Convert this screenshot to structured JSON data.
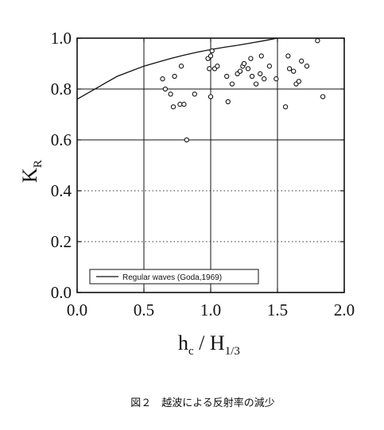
{
  "chart_data": {
    "type": "scatter",
    "xlabel": {
      "main": "h",
      "main_sub": "c",
      "sep": " / ",
      "denom": "H",
      "denom_sub": "1/3"
    },
    "ylabel": {
      "main": "K",
      "sub": "R"
    },
    "xlim": [
      0.0,
      2.0
    ],
    "ylim": [
      0.0,
      1.0
    ],
    "x_ticks": [
      "0.0",
      "0.5",
      "1.0",
      "1.5",
      "2.0"
    ],
    "y_ticks": [
      "0.0",
      "0.2",
      "0.4",
      "0.6",
      "0.8",
      "1.0"
    ],
    "grid": "solid at 0.5, 1.0, 1.5 (x) and 0.6, 0.8 (y); dotted at 0.2, 0.4 (y)",
    "legend": {
      "placement": "bottom-left",
      "entry": "Regular waves (Goda,1969)"
    },
    "series": [
      {
        "name": "Regular waves (Goda,1969)",
        "style": "line",
        "points": [
          [
            0.0,
            0.76
          ],
          [
            0.1,
            0.79
          ],
          [
            0.2,
            0.82
          ],
          [
            0.3,
            0.85
          ],
          [
            0.4,
            0.87
          ],
          [
            0.5,
            0.89
          ],
          [
            0.6,
            0.905
          ],
          [
            0.7,
            0.92
          ],
          [
            0.8,
            0.933
          ],
          [
            0.9,
            0.945
          ],
          [
            1.0,
            0.955
          ],
          [
            1.1,
            0.964
          ],
          [
            1.2,
            0.972
          ],
          [
            1.3,
            0.981
          ],
          [
            1.4,
            0.99
          ],
          [
            1.5,
            1.0
          ]
        ]
      },
      {
        "style": "open-circle",
        "points": [
          [
            0.64,
            0.84
          ],
          [
            0.66,
            0.8
          ],
          [
            0.7,
            0.78
          ],
          [
            0.72,
            0.73
          ],
          [
            0.73,
            0.85
          ],
          [
            0.77,
            0.74
          ],
          [
            0.78,
            0.89
          ],
          [
            0.8,
            0.74
          ],
          [
            0.82,
            0.6
          ],
          [
            0.88,
            0.78
          ],
          [
            0.98,
            0.92
          ],
          [
            0.99,
            0.88
          ],
          [
            1.0,
            0.77
          ],
          [
            1.0,
            0.93
          ],
          [
            1.01,
            0.95
          ],
          [
            1.03,
            0.88
          ],
          [
            1.05,
            0.89
          ],
          [
            1.12,
            0.85
          ],
          [
            1.13,
            0.75
          ],
          [
            1.16,
            0.82
          ],
          [
            1.2,
            0.86
          ],
          [
            1.22,
            0.87
          ],
          [
            1.24,
            0.89
          ],
          [
            1.25,
            0.9
          ],
          [
            1.28,
            0.88
          ],
          [
            1.3,
            0.92
          ],
          [
            1.31,
            0.85
          ],
          [
            1.34,
            0.82
          ],
          [
            1.37,
            0.86
          ],
          [
            1.38,
            0.93
          ],
          [
            1.4,
            0.84
          ],
          [
            1.44,
            0.89
          ],
          [
            1.49,
            0.84
          ],
          [
            1.56,
            0.73
          ],
          [
            1.58,
            0.93
          ],
          [
            1.59,
            0.88
          ],
          [
            1.62,
            0.87
          ],
          [
            1.64,
            0.82
          ],
          [
            1.66,
            0.83
          ],
          [
            1.68,
            0.91
          ],
          [
            1.72,
            0.89
          ],
          [
            1.8,
            0.99
          ],
          [
            1.84,
            0.77
          ]
        ]
      }
    ]
  },
  "caption": "図２　越波による反射率の減少"
}
